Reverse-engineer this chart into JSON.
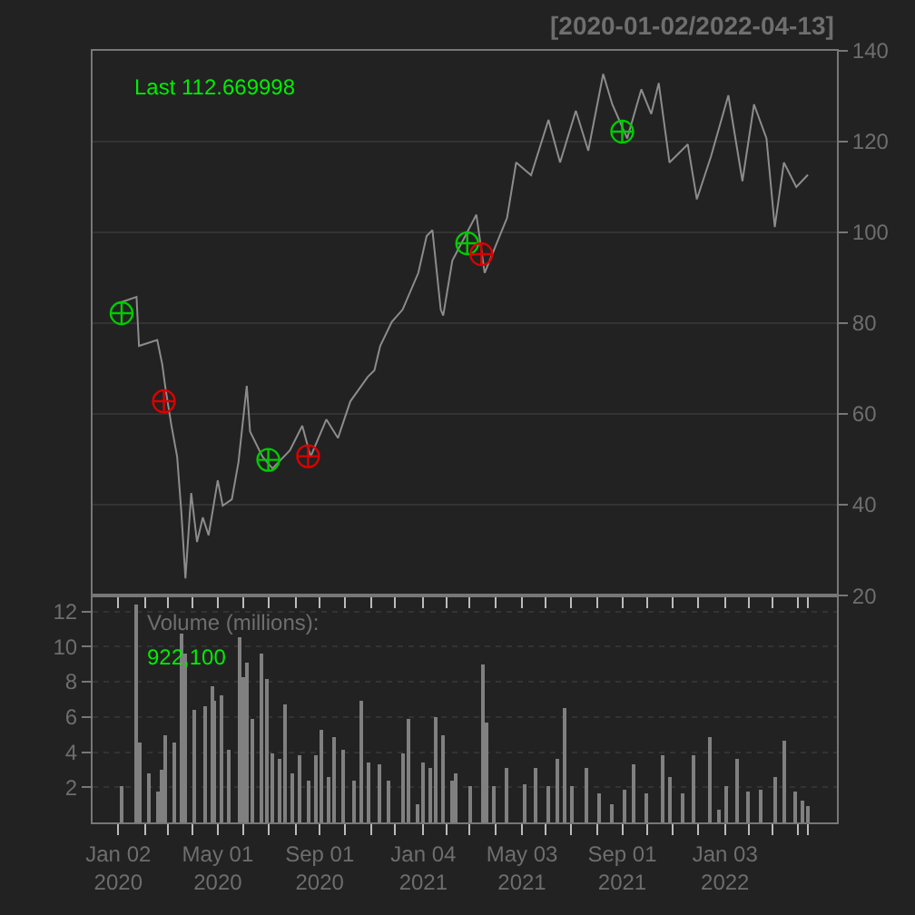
{
  "chart_data": [
    {
      "type": "line",
      "title": "[2020-01-02/2022-04-13]",
      "annotations": [
        "Last 112.669998"
      ],
      "grid": "y",
      "tick_labels": "y",
      "xlim": [
        "2019-12-02",
        "2022-05-18"
      ],
      "ylim": [
        20,
        140
      ],
      "yticks": [
        20,
        40,
        60,
        80,
        100,
        120,
        140
      ],
      "series": [
        {
          "color": "#8c8c8c",
          "x": [
            "2020-01-02",
            "2020-01-24",
            "2020-01-27",
            "2020-02-18",
            "2020-02-24",
            "2020-02-28",
            "2020-03-06",
            "2020-03-13",
            "2020-03-18",
            "2020-03-23",
            "2020-03-30",
            "2020-04-06",
            "2020-04-13",
            "2020-04-20",
            "2020-05-01",
            "2020-05-07",
            "2020-05-18",
            "2020-05-26",
            "2020-06-05",
            "2020-06-09",
            "2020-06-24",
            "2020-07-06",
            "2020-07-27",
            "2020-08-11",
            "2020-08-21",
            "2020-09-09",
            "2020-09-23",
            "2020-10-08",
            "2020-10-29",
            "2020-11-06",
            "2020-11-13",
            "2020-11-27",
            "2020-12-10",
            "2020-12-29",
            "2021-01-08",
            "2021-01-15",
            "2021-01-25",
            "2021-01-28",
            "2021-02-08",
            "2021-03-09",
            "2021-03-19",
            "2021-04-15",
            "2021-04-26",
            "2021-05-14",
            "2021-06-04",
            "2021-06-18",
            "2021-07-07",
            "2021-07-22",
            "2021-08-09",
            "2021-08-20",
            "2021-09-07",
            "2021-09-24",
            "2021-10-06",
            "2021-10-15",
            "2021-10-28",
            "2021-11-19",
            "2021-11-30",
            "2021-12-17",
            "2022-01-07",
            "2022-01-24",
            "2022-02-07",
            "2022-02-22",
            "2022-03-04",
            "2022-03-15",
            "2022-03-30",
            "2022-04-13"
          ],
          "values": [
            84.4,
            85.8,
            75,
            76.3,
            71,
            65.6,
            57.6,
            50.6,
            38.6,
            23.8,
            42.6,
            31.8,
            37.2,
            33.3,
            45.4,
            39.8,
            41.2,
            49.4,
            66.2,
            56.1,
            50.6,
            48,
            52,
            57.4,
            50.6,
            58.8,
            54.7,
            62.8,
            68.2,
            69.6,
            75,
            80.3,
            83,
            91.1,
            99.2,
            100.5,
            83,
            81.7,
            93.8,
            103.9,
            91.1,
            103.2,
            115.4,
            112.6,
            124.8,
            115.4,
            126.8,
            118,
            134.9,
            128.2,
            120.7,
            131.5,
            126.1,
            132.9,
            115.4,
            119.4,
            107.3,
            116.7,
            130.2,
            111.3,
            128.2,
            120.7,
            101.2,
            115.4,
            110,
            112.7
          ]
        },
        {
          "type": "scatter",
          "marker": "cross",
          "color": "#00cc00",
          "x": [
            "2020-01-06",
            "2020-07-01",
            "2021-02-26",
            "2021-09-01"
          ],
          "values": [
            82.2,
            49.9,
            97.6,
            122.2
          ]
        },
        {
          "type": "scatter",
          "marker": "cross",
          "color": "#dd0000",
          "x": [
            "2020-02-26",
            "2020-08-18",
            "2021-03-15"
          ],
          "values": [
            62.8,
            50.7,
            95.2
          ]
        }
      ]
    },
    {
      "type": "bar",
      "annotations": [
        "Volume (millions):",
        "922,100"
      ],
      "grid": "y",
      "xlim": [
        "2019-12-02",
        "2022-05-18"
      ],
      "ylim": [
        0,
        12.9
      ],
      "yticks": [
        2,
        4,
        6,
        8,
        10,
        12
      ],
      "xticks": [
        {
          "value": "2020-01-02",
          "label": "Jan 02\n2020"
        },
        {
          "value": "2020-02-03",
          "label": null
        },
        {
          "value": "2020-03-02",
          "label": null
        },
        {
          "value": "2020-04-01",
          "label": null
        },
        {
          "value": "2020-05-01",
          "label": "May 01\n2020"
        },
        {
          "value": "2020-06-01",
          "label": null
        },
        {
          "value": "2020-07-01",
          "label": null
        },
        {
          "value": "2020-08-03",
          "label": null
        },
        {
          "value": "2020-09-01",
          "label": "Sep 01\n2020"
        },
        {
          "value": "2020-10-01",
          "label": null
        },
        {
          "value": "2020-11-02",
          "label": null
        },
        {
          "value": "2020-12-01",
          "label": null
        },
        {
          "value": "2021-01-04",
          "label": "Jan 04\n2021"
        },
        {
          "value": "2021-02-01",
          "label": null
        },
        {
          "value": "2021-03-01",
          "label": null
        },
        {
          "value": "2021-04-01",
          "label": null
        },
        {
          "value": "2021-05-03",
          "label": "May 03\n2021"
        },
        {
          "value": "2021-06-01",
          "label": null
        },
        {
          "value": "2021-07-01",
          "label": null
        },
        {
          "value": "2021-08-02",
          "label": null
        },
        {
          "value": "2021-09-01",
          "label": "Sep 01\n2021"
        },
        {
          "value": "2021-10-01",
          "label": null
        },
        {
          "value": "2021-11-01",
          "label": null
        },
        {
          "value": "2021-12-01",
          "label": null
        },
        {
          "value": "2022-01-03",
          "label": "Jan 03\n2022"
        },
        {
          "value": "2022-02-01",
          "label": null
        },
        {
          "value": "2022-03-01",
          "label": null
        },
        {
          "value": "2022-04-01",
          "label": null
        },
        {
          "value": "2022-04-13",
          "label": null
        }
      ],
      "series": [
        {
          "color": "#808080",
          "x": [
            "2020-01-06",
            "2020-01-23",
            "2020-01-27",
            "2020-02-07",
            "2020-02-18",
            "2020-02-24",
            "2020-02-28",
            "2020-03-10",
            "2020-03-18",
            "2020-03-23",
            "2020-04-02",
            "2020-04-16",
            "2020-04-24",
            "2020-04-27",
            "2020-05-05",
            "2020-05-15",
            "2020-05-27",
            "2020-06-01",
            "2020-06-05",
            "2020-06-12",
            "2020-06-22",
            "2020-06-29",
            "2020-07-06",
            "2020-07-14",
            "2020-07-22",
            "2020-07-31",
            "2020-08-07",
            "2020-08-18",
            "2020-08-27",
            "2020-09-04",
            "2020-09-11",
            "2020-09-18",
            "2020-09-30",
            "2020-10-12",
            "2020-10-22",
            "2020-10-30",
            "2020-11-13",
            "2020-11-24",
            "2020-12-10",
            "2020-12-18",
            "2020-12-28",
            "2021-01-04",
            "2021-01-12",
            "2021-01-19",
            "2021-01-28",
            "2021-02-08",
            "2021-02-12",
            "2021-03-02",
            "2021-03-17",
            "2021-03-22",
            "2021-03-31",
            "2021-04-15",
            "2021-05-06",
            "2021-05-19",
            "2021-06-04",
            "2021-06-15",
            "2021-06-23",
            "2021-07-02",
            "2021-07-19",
            "2021-08-05",
            "2021-08-20",
            "2021-09-03",
            "2021-09-14",
            "2021-09-29",
            "2021-10-19",
            "2021-10-28",
            "2021-11-12",
            "2021-11-26",
            "2021-12-15",
            "2021-12-27",
            "2022-01-05",
            "2022-01-18",
            "2022-01-31",
            "2022-02-14",
            "2022-03-04",
            "2022-03-15",
            "2022-03-28",
            "2022-04-07",
            "2022-04-13"
          ],
          "values": [
            2.1,
            12.4,
            4.5,
            2.8,
            1.7,
            3.0,
            5.0,
            4.5,
            10.7,
            9.6,
            6.4,
            6.6,
            7.7,
            6.9,
            7.2,
            4.1,
            10.5,
            8.3,
            9.1,
            5.9,
            9.6,
            8.1,
            3.9,
            3.6,
            6.7,
            2.8,
            3.8,
            2.4,
            3.8,
            5.3,
            2.6,
            4.8,
            4.1,
            2.4,
            6.9,
            3.4,
            3.3,
            2.4,
            3.9,
            5.9,
            1.0,
            3.4,
            3.1,
            6.0,
            5.0,
            2.4,
            2.8,
            2.1,
            9.0,
            5.7,
            2.1,
            3.1,
            2.2,
            3.1,
            2.1,
            3.6,
            6.5,
            2.1,
            3.1,
            1.6,
            1.0,
            1.9,
            3.3,
            1.6,
            3.8,
            2.6,
            1.6,
            3.8,
            4.8,
            0.7,
            2.1,
            3.6,
            1.7,
            1.9,
            2.6,
            4.6,
            1.7,
            1.2,
            0.9
          ]
        }
      ]
    }
  ]
}
